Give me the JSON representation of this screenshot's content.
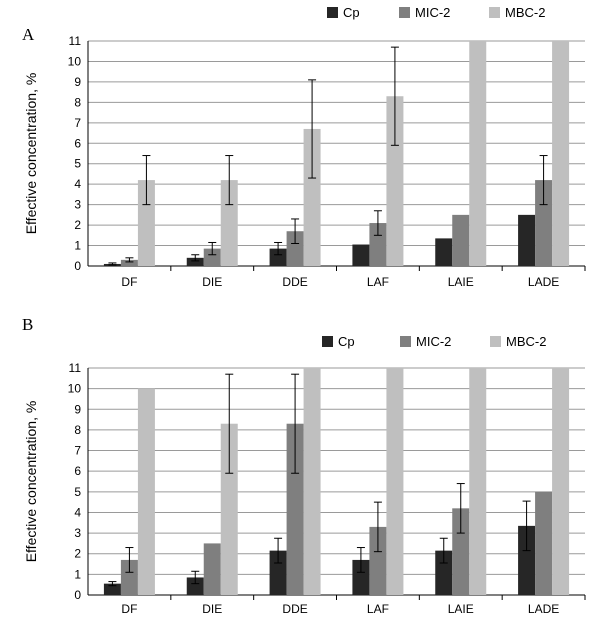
{
  "chart_data": [
    {
      "type": "bar",
      "panel_label": "A",
      "categories": [
        "DF",
        "DIE",
        "DDE",
        "LAF",
        "LAIE",
        "LADE"
      ],
      "ylabel": "Effective concentration, %",
      "ylim": [
        0,
        11
      ],
      "yticks": [
        0,
        1,
        2,
        3,
        4,
        5,
        6,
        7,
        8,
        9,
        10,
        11
      ],
      "grid": true,
      "legend_position": "top-right",
      "series": [
        {
          "name": "Cp",
          "color": "#262626",
          "values": [
            0.1,
            0.4,
            0.85,
            1.05,
            1.35,
            2.5
          ],
          "errors": [
            0.05,
            0.15,
            0.3,
            0,
            0,
            0
          ]
        },
        {
          "name": "MIC-2",
          "color": "#7f7f7f",
          "values": [
            0.3,
            0.85,
            1.7,
            2.1,
            2.5,
            4.2
          ],
          "errors": [
            0.1,
            0.3,
            0.6,
            0.6,
            0,
            1.2
          ]
        },
        {
          "name": "MBC-2",
          "color": "#bfbfbf",
          "values": [
            4.2,
            4.2,
            6.7,
            8.3,
            11,
            11
          ],
          "errors": [
            1.2,
            1.2,
            2.4,
            2.4,
            0,
            0
          ]
        }
      ]
    },
    {
      "type": "bar",
      "panel_label": "B",
      "categories": [
        "DF",
        "DIE",
        "DDE",
        "LAF",
        "LAIE",
        "LADE"
      ],
      "ylabel": "Effective concentration, %",
      "ylim": [
        0,
        11
      ],
      "yticks": [
        0,
        1,
        2,
        3,
        4,
        5,
        6,
        7,
        8,
        9,
        10,
        11
      ],
      "grid": true,
      "legend_position": "top-right",
      "series": [
        {
          "name": "Cp",
          "color": "#262626",
          "values": [
            0.55,
            0.85,
            2.15,
            1.7,
            2.15,
            3.35
          ],
          "errors": [
            0.1,
            0.3,
            0.6,
            0.6,
            0.6,
            1.2
          ]
        },
        {
          "name": "MIC-2",
          "color": "#7f7f7f",
          "values": [
            1.7,
            2.5,
            8.3,
            3.3,
            4.2,
            5.0
          ],
          "errors": [
            0.6,
            0,
            2.4,
            1.2,
            1.2,
            0
          ]
        },
        {
          "name": "MBC-2",
          "color": "#bfbfbf",
          "values": [
            10,
            8.3,
            11,
            11,
            11,
            11
          ],
          "errors": [
            0,
            2.4,
            0,
            0,
            0,
            0
          ]
        }
      ]
    }
  ]
}
